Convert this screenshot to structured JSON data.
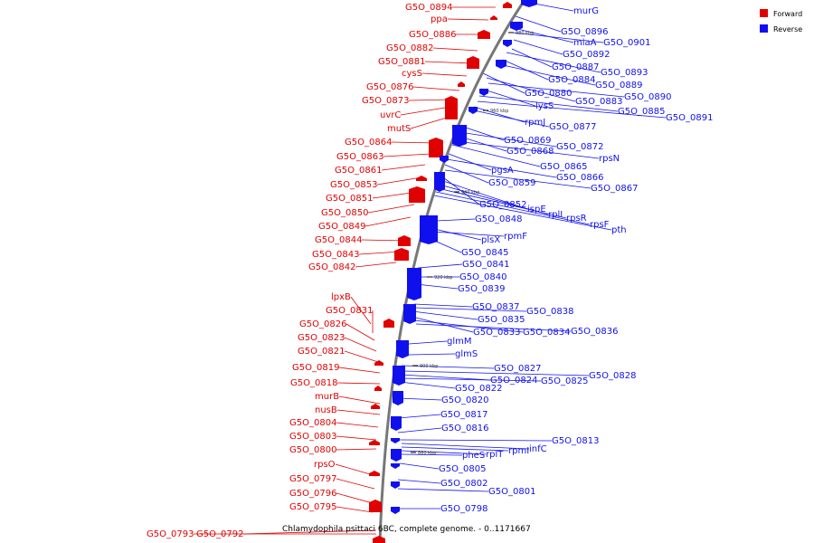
{
  "caption": "Chlamydophila psittaci 6BC, complete genome. - 0..1171667",
  "legend": [
    {
      "label": "Forward",
      "color": "#e00000"
    },
    {
      "label": "Reverse",
      "color": "#1010ee"
    }
  ],
  "colors": {
    "forward": "#e00000",
    "reverse": "#1010ee",
    "backbone": "#888888"
  },
  "ticks": [
    "980 kbp",
    "960 kbp",
    "940 kbp",
    "920 kbp",
    "900 kbp",
    "880 kbp"
  ],
  "forward_genes": [
    "G5O_0894",
    "ppa",
    "G5O_0886",
    "G5O_0882",
    "G5O_0881",
    "cysS",
    "G5O_0876",
    "G5O_0873",
    "uvrC",
    "mutS",
    "G5O_0864",
    "G5O_0863",
    "G5O_0861",
    "G5O_0853",
    "G5O_0851",
    "G5O_0850",
    "G5O_0849",
    "G5O_0844",
    "G5O_0843",
    "G5O_0842",
    "lpxB",
    "G5O_0831",
    "G5O_0826",
    "G5O_0823",
    "G5O_0821",
    "G5O_0819",
    "G5O_0818",
    "murB",
    "nusB",
    "G5O_0804",
    "G5O_0803",
    "G5O_0800",
    "rpsO",
    "G5O_0797",
    "G5O_0796",
    "G5O_0795",
    "G5O_0793",
    "G5O_0792"
  ],
  "reverse_genes": [
    "murG",
    "G5O_0896",
    "miaA",
    "G5O_0901",
    "G5O_0892",
    "G5O_0887",
    "G5O_0893",
    "G5O_0884",
    "G5O_0889",
    "G5O_0880",
    "G5O_0883",
    "G5O_0890",
    "lysS",
    "G5O_0885",
    "G5O_0891",
    "rpmJ",
    "G5O_0877",
    "G5O_0869",
    "G5O_0872",
    "G5O_0868",
    "rpsN",
    "G5O_0865",
    "pgsA",
    "G5O_0866",
    "G5O_0859",
    "G5O_0867",
    "G5O_0852",
    "ispE",
    "rplI",
    "rpsR",
    "rpsF",
    "pth",
    "G5O_0848",
    "plsX",
    "rpmF",
    "G5O_0845",
    "G5O_0841",
    "G5O_0840",
    "G5O_0839",
    "G5O_0837",
    "G5O_0838",
    "G5O_0835",
    "G5O_0833",
    "G5O_0834",
    "G5O_0836",
    "glmM",
    "glmS",
    "G5O_0827",
    "G5O_0828",
    "G5O_0824",
    "G5O_0825",
    "G5O_0822",
    "G5O_0820",
    "G5O_0817",
    "G5O_0816",
    "G5O_0813",
    "infC",
    "rpmI",
    "rplT",
    "pheS",
    "G5O_0805",
    "G5O_0802",
    "G5O_0801",
    "G5O_0798"
  ]
}
